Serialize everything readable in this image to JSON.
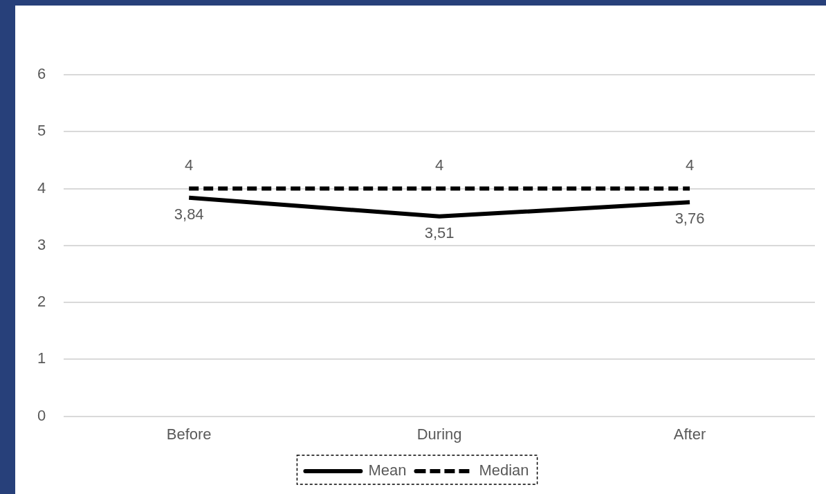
{
  "chart_data": {
    "type": "line",
    "categories": [
      "Before",
      "During",
      "After"
    ],
    "series": [
      {
        "name": "Mean",
        "color": "#000000",
        "line_style": "solid",
        "values": [
          3.84,
          3.51,
          3.76
        ],
        "value_labels": [
          "3,84",
          "3,51",
          "3,76"
        ]
      },
      {
        "name": "Median",
        "color": "#000000",
        "line_style": "dashed",
        "values": [
          4,
          4,
          4
        ],
        "value_labels": [
          "4",
          "4",
          "4"
        ]
      }
    ],
    "ylim": [
      0,
      6
    ],
    "yticks": [
      0,
      1,
      2,
      3,
      4,
      5,
      6
    ],
    "grid": "y",
    "legend": "bottom",
    "marker": "none"
  }
}
